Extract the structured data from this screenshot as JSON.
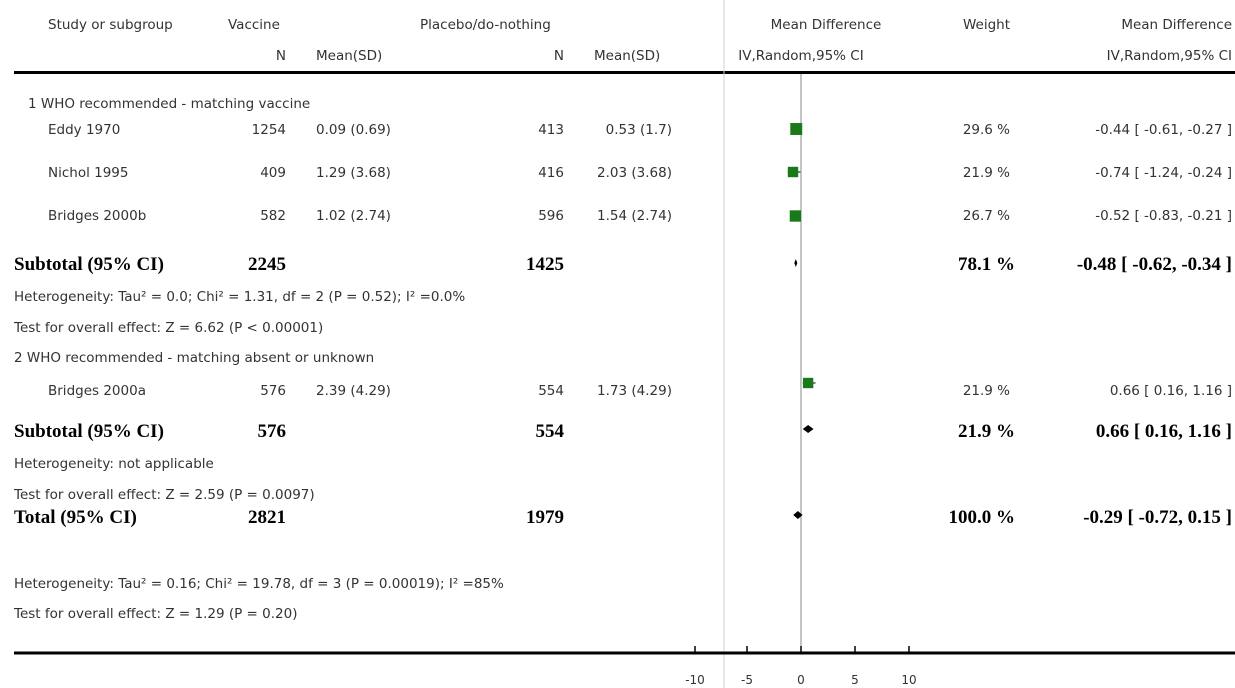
{
  "header": {
    "study": "Study or subgroup",
    "vaccine": "Vaccine",
    "placebo": "Placebo/do-nothing",
    "n1": "N",
    "mean1": "Mean(SD)",
    "n2": "N",
    "mean2": "Mean(SD)",
    "md_plot": "Mean Difference",
    "md_plot_sub": "IV,Random,95% CI",
    "weight": "Weight",
    "md_text": "Mean Difference",
    "md_text_sub": "IV,Random,95% CI"
  },
  "groups": [
    {
      "title": "1 WHO recommended - matching vaccine",
      "studies": [
        {
          "name": "Eddy 1970",
          "n1": "1254",
          "m1": "0.09 (0.69)",
          "n2": "413",
          "m2": "0.53 (1.7)",
          "weight": "29.6 %",
          "ci": "-0.44 [ -0.61, -0.27 ]"
        },
        {
          "name": "Nichol 1995",
          "n1": "409",
          "m1": "1.29 (3.68)",
          "n2": "416",
          "m2": "2.03 (3.68)",
          "weight": "21.9 %",
          "ci": "-0.74 [ -1.24, -0.24 ]"
        },
        {
          "name": "Bridges 2000b",
          "n1": "582",
          "m1": "1.02 (2.74)",
          "n2": "596",
          "m2": "1.54 (2.74)",
          "weight": "26.7 %",
          "ci": "-0.52 [ -0.83, -0.21 ]"
        }
      ],
      "subtotal": {
        "label": "Subtotal (95% CI)",
        "n1": "2245",
        "n2": "1425",
        "weight": "78.1 %",
        "ci": "-0.48 [ -0.62, -0.34 ]"
      },
      "heterogeneity": "Heterogeneity: Tau² = 0.0; Chi² = 1.31, df = 2 (P = 0.52); I² =0.0%",
      "overall": "Test for overall effect: Z = 6.62 (P < 0.00001)"
    },
    {
      "title": "2 WHO recommended - matching absent or unknown",
      "studies": [
        {
          "name": "Bridges 2000a",
          "n1": "576",
          "m1": "2.39 (4.29)",
          "n2": "554",
          "m2": "1.73 (4.29)",
          "weight": "21.9 %",
          "ci": "0.66 [ 0.16, 1.16 ]"
        }
      ],
      "subtotal": {
        "label": "Subtotal (95% CI)",
        "n1": "576",
        "n2": "554",
        "weight": "21.9 %",
        "ci": "0.66 [ 0.16, 1.16 ]"
      },
      "heterogeneity": "Heterogeneity: not applicable",
      "overall": "Test for overall effect: Z = 2.59 (P = 0.0097)"
    }
  ],
  "total": {
    "label": "Total (95% CI)",
    "n1": "2821",
    "n2": "1979",
    "weight": "100.0 %",
    "ci": "-0.29 [ -0.72, 0.15 ]",
    "heterogeneity": "Heterogeneity: Tau² = 0.16; Chi² = 19.78, df = 3 (P = 0.00019); I² =85%",
    "overall": "Test for overall effect: Z = 1.29 (P = 0.20)"
  },
  "axis_ticks": [
    "-10",
    "-5",
    "0",
    "5",
    "10"
  ],
  "colors": {
    "study_marker": "#1a7a1a",
    "summary_marker": "#000000",
    "lines": "#000000",
    "null_line": "#888888"
  },
  "chart_data": {
    "type": "scatter",
    "xlim": [
      -10,
      10
    ],
    "x_ticks": [
      -10,
      -5,
      0,
      5,
      10
    ],
    "null_line": 0,
    "studies": [
      {
        "name": "Eddy 1970",
        "estimate": -0.44,
        "ci": [
          -0.61,
          -0.27
        ],
        "weight": 29.6
      },
      {
        "name": "Nichol 1995",
        "estimate": -0.74,
        "ci": [
          -1.24,
          -0.24
        ],
        "weight": 21.9
      },
      {
        "name": "Bridges 2000b",
        "estimate": -0.52,
        "ci": [
          -0.83,
          -0.21
        ],
        "weight": 26.7
      },
      {
        "name": "Bridges 2000a",
        "estimate": 0.66,
        "ci": [
          0.16,
          1.16
        ],
        "weight": 21.9
      }
    ],
    "summaries": [
      {
        "name": "Subtotal 1",
        "estimate": -0.48,
        "ci": [
          -0.62,
          -0.34
        ]
      },
      {
        "name": "Subtotal 2",
        "estimate": 0.66,
        "ci": [
          0.16,
          1.16
        ]
      },
      {
        "name": "Total",
        "estimate": -0.29,
        "ci": [
          -0.72,
          0.15
        ]
      }
    ]
  }
}
